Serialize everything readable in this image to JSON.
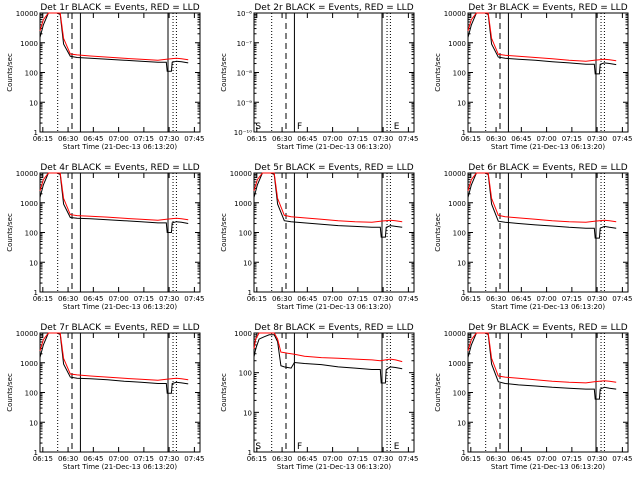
{
  "common": {
    "title_suffix": "BLACK = Events, RED = LLD",
    "xlabel": "Start Time (21-Dec-13 06:13:20)",
    "ylabel": "Counts/sec",
    "xticks": [
      "06:15",
      "06:30",
      "06:45",
      "07:00",
      "07:15",
      "07:30",
      "07:45"
    ],
    "colors": {
      "events": "#000000",
      "lld": "#ff0000"
    }
  },
  "chart_data": [
    {
      "type": "line",
      "title": "Det 1r",
      "ylim": [
        1,
        10000
      ],
      "yscale": "log",
      "yticks": [
        "1",
        "10",
        "100",
        "1000",
        "10000"
      ],
      "letters": [],
      "series": [
        {
          "name": "BLACK = Events",
          "x": [
            0,
            2,
            5,
            8,
            10,
            12,
            14,
            18,
            22,
            30,
            40,
            50,
            60,
            70,
            75,
            75.5,
            78,
            78.5,
            81,
            84,
            88
          ],
          "y": [
            1500,
            4000,
            10000,
            10000,
            10000,
            9000,
            900,
            350,
            320,
            300,
            280,
            260,
            240,
            220,
            220,
            110,
            110,
            220,
            240,
            230,
            210
          ]
        },
        {
          "name": "RED = LLD",
          "x": [
            0,
            2,
            5,
            8,
            10,
            12,
            14,
            18,
            22,
            30,
            40,
            50,
            60,
            70,
            75,
            78,
            81,
            84,
            88
          ],
          "y": [
            2500,
            6000,
            10000,
            10000,
            10000,
            10000,
            1400,
            420,
            390,
            360,
            330,
            300,
            280,
            260,
            280,
            290,
            300,
            290,
            270
          ]
        }
      ]
    },
    {
      "type": "line",
      "title": "Det 2r",
      "ylim": [
        1e-10,
        1e-06
      ],
      "yscale": "log",
      "yticks": [
        "10⁻¹⁰",
        "10⁻⁹",
        "10⁻⁸",
        "10⁻⁷",
        "10⁻⁶"
      ],
      "letters": [
        "S",
        "F",
        "E"
      ],
      "series": []
    },
    {
      "type": "line",
      "title": "Det 3r",
      "ylim": [
        1,
        10000
      ],
      "yscale": "log",
      "yticks": [
        "1",
        "10",
        "100",
        "1000",
        "10000"
      ],
      "letters": [],
      "series": [
        {
          "name": "BLACK = Events",
          "x": [
            0,
            2,
            5,
            8,
            10,
            12,
            14,
            18,
            22,
            30,
            40,
            50,
            60,
            70,
            75,
            75.5,
            78,
            78.5,
            81,
            84,
            88
          ],
          "y": [
            1500,
            4000,
            10000,
            10000,
            10000,
            9000,
            900,
            330,
            300,
            280,
            260,
            230,
            210,
            190,
            190,
            90,
            90,
            190,
            210,
            200,
            185
          ]
        },
        {
          "name": "RED = LLD",
          "x": [
            0,
            2,
            5,
            8,
            10,
            12,
            14,
            18,
            22,
            30,
            40,
            50,
            60,
            70,
            75,
            78,
            81,
            84,
            88
          ],
          "y": [
            2500,
            6000,
            10000,
            10000,
            10000,
            10000,
            1400,
            410,
            380,
            350,
            320,
            290,
            260,
            240,
            260,
            270,
            280,
            270,
            250
          ]
        }
      ]
    },
    {
      "type": "line",
      "title": "Det 4r",
      "ylim": [
        1,
        10000
      ],
      "yscale": "log",
      "yticks": [
        "1",
        "10",
        "100",
        "1000",
        "10000"
      ],
      "letters": [],
      "series": [
        {
          "name": "BLACK = Events",
          "x": [
            0,
            2,
            5,
            8,
            10,
            12,
            14,
            18,
            22,
            30,
            40,
            50,
            60,
            70,
            75,
            75.5,
            78,
            78.5,
            81,
            84,
            88
          ],
          "y": [
            1500,
            4000,
            10000,
            10000,
            10000,
            9000,
            900,
            320,
            300,
            290,
            270,
            250,
            230,
            210,
            210,
            100,
            100,
            210,
            230,
            220,
            200
          ]
        },
        {
          "name": "RED = LLD",
          "x": [
            0,
            2,
            5,
            8,
            10,
            12,
            14,
            18,
            22,
            30,
            40,
            50,
            60,
            70,
            75,
            78,
            81,
            84,
            88
          ],
          "y": [
            2500,
            6000,
            10000,
            10000,
            10000,
            10000,
            1400,
            400,
            370,
            350,
            330,
            300,
            280,
            260,
            280,
            290,
            300,
            290,
            270
          ]
        }
      ]
    },
    {
      "type": "line",
      "title": "Det 5r",
      "ylim": [
        1,
        10000
      ],
      "yscale": "log",
      "yticks": [
        "1",
        "10",
        "100",
        "1000",
        "10000"
      ],
      "letters": [],
      "series": [
        {
          "name": "BLACK = Events",
          "x": [
            0,
            2,
            5,
            8,
            10,
            12,
            14,
            18,
            22,
            30,
            40,
            50,
            60,
            70,
            75,
            75.5,
            78,
            78.5,
            81,
            84,
            88
          ],
          "y": [
            1500,
            4000,
            10000,
            10000,
            10000,
            9000,
            900,
            250,
            230,
            210,
            190,
            170,
            160,
            150,
            150,
            70,
            70,
            150,
            170,
            160,
            150
          ]
        },
        {
          "name": "RED = LLD",
          "x": [
            0,
            2,
            5,
            8,
            10,
            12,
            14,
            18,
            22,
            30,
            40,
            50,
            60,
            70,
            75,
            78,
            81,
            84,
            88
          ],
          "y": [
            2500,
            6000,
            10000,
            10000,
            10000,
            10000,
            1400,
            380,
            340,
            310,
            280,
            250,
            230,
            220,
            240,
            250,
            260,
            250,
            230
          ]
        }
      ]
    },
    {
      "type": "line",
      "title": "Det 6r",
      "ylim": [
        1,
        10000
      ],
      "yscale": "log",
      "yticks": [
        "1",
        "10",
        "100",
        "1000",
        "10000"
      ],
      "letters": [],
      "series": [
        {
          "name": "BLACK = Events",
          "x": [
            0,
            2,
            5,
            8,
            10,
            12,
            14,
            18,
            22,
            30,
            40,
            50,
            60,
            70,
            75,
            75.5,
            78,
            78.5,
            81,
            84,
            88
          ],
          "y": [
            1500,
            4000,
            10000,
            10000,
            10000,
            9000,
            900,
            240,
            220,
            200,
            180,
            165,
            150,
            140,
            140,
            65,
            65,
            140,
            160,
            150,
            140
          ]
        },
        {
          "name": "RED = LLD",
          "x": [
            0,
            2,
            5,
            8,
            10,
            12,
            14,
            18,
            22,
            30,
            40,
            50,
            60,
            70,
            75,
            78,
            81,
            84,
            88
          ],
          "y": [
            2500,
            6000,
            10000,
            10000,
            10000,
            10000,
            1400,
            380,
            340,
            310,
            280,
            250,
            230,
            220,
            240,
            250,
            260,
            250,
            230
          ]
        }
      ]
    },
    {
      "type": "line",
      "title": "Det 7r",
      "ylim": [
        1,
        10000
      ],
      "yscale": "log",
      "yticks": [
        "1",
        "10",
        "100",
        "1000",
        "10000"
      ],
      "letters": [],
      "series": [
        {
          "name": "BLACK = Events",
          "x": [
            0,
            2,
            5,
            8,
            10,
            12,
            14,
            18,
            22,
            30,
            40,
            50,
            60,
            70,
            75,
            75.5,
            78,
            78.5,
            81,
            84,
            88
          ],
          "y": [
            1500,
            4000,
            10000,
            10000,
            10000,
            9000,
            900,
            330,
            300,
            290,
            270,
            240,
            220,
            200,
            200,
            95,
            95,
            200,
            220,
            210,
            195
          ]
        },
        {
          "name": "RED = LLD",
          "x": [
            0,
            2,
            5,
            8,
            10,
            12,
            14,
            18,
            22,
            30,
            40,
            50,
            60,
            70,
            75,
            78,
            81,
            84,
            88
          ],
          "y": [
            2500,
            6000,
            10000,
            10000,
            10000,
            10000,
            1400,
            420,
            390,
            360,
            330,
            300,
            280,
            260,
            280,
            290,
            300,
            290,
            270
          ]
        }
      ]
    },
    {
      "type": "line",
      "title": "Det 8r",
      "ylim": [
        1,
        1000
      ],
      "yscale": "log",
      "yticks": [
        "1",
        "10",
        "100",
        "1000"
      ],
      "letters": [
        "S",
        "F",
        "E"
      ],
      "series": [
        {
          "name": "BLACK = Events",
          "x": [
            0,
            1,
            3,
            6,
            9,
            12,
            14,
            16,
            18,
            20,
            22,
            24,
            30,
            40,
            50,
            60,
            70,
            75,
            75.5,
            78,
            78.5,
            81,
            84,
            88
          ],
          "y": [
            250,
            400,
            700,
            800,
            900,
            900,
            600,
            150,
            140,
            135,
            130,
            180,
            170,
            160,
            140,
            130,
            120,
            120,
            55,
            55,
            120,
            140,
            135,
            125
          ]
        },
        {
          "name": "RED = LLD",
          "x": [
            0,
            1,
            3,
            6,
            9,
            12,
            14,
            16,
            18,
            20,
            22,
            24,
            30,
            40,
            50,
            60,
            70,
            75,
            78,
            81,
            84,
            88
          ],
          "y": [
            400,
            700,
            1000,
            1000,
            1000,
            1000,
            700,
            330,
            320,
            310,
            300,
            290,
            260,
            240,
            230,
            220,
            210,
            200,
            210,
            220,
            210,
            190
          ]
        }
      ]
    },
    {
      "type": "line",
      "title": "Det 9r",
      "ylim": [
        1,
        10000
      ],
      "yscale": "log",
      "yticks": [
        "1",
        "10",
        "100",
        "1000",
        "10000"
      ],
      "letters": [],
      "series": [
        {
          "name": "BLACK = Events",
          "x": [
            0,
            2,
            5,
            8,
            10,
            12,
            14,
            18,
            22,
            30,
            40,
            50,
            60,
            70,
            75,
            75.5,
            78,
            78.5,
            81,
            84,
            88
          ],
          "y": [
            1500,
            4000,
            10000,
            10000,
            10000,
            9000,
            900,
            230,
            200,
            180,
            165,
            150,
            140,
            130,
            130,
            60,
            60,
            130,
            150,
            140,
            130
          ]
        },
        {
          "name": "RED = LLD",
          "x": [
            0,
            2,
            5,
            8,
            10,
            12,
            14,
            18,
            22,
            30,
            40,
            50,
            60,
            70,
            75,
            78,
            81,
            84,
            88
          ],
          "y": [
            2500,
            6000,
            10000,
            10000,
            10000,
            10000,
            1400,
            360,
            330,
            300,
            270,
            240,
            220,
            210,
            230,
            240,
            250,
            240,
            220
          ]
        }
      ]
    }
  ]
}
